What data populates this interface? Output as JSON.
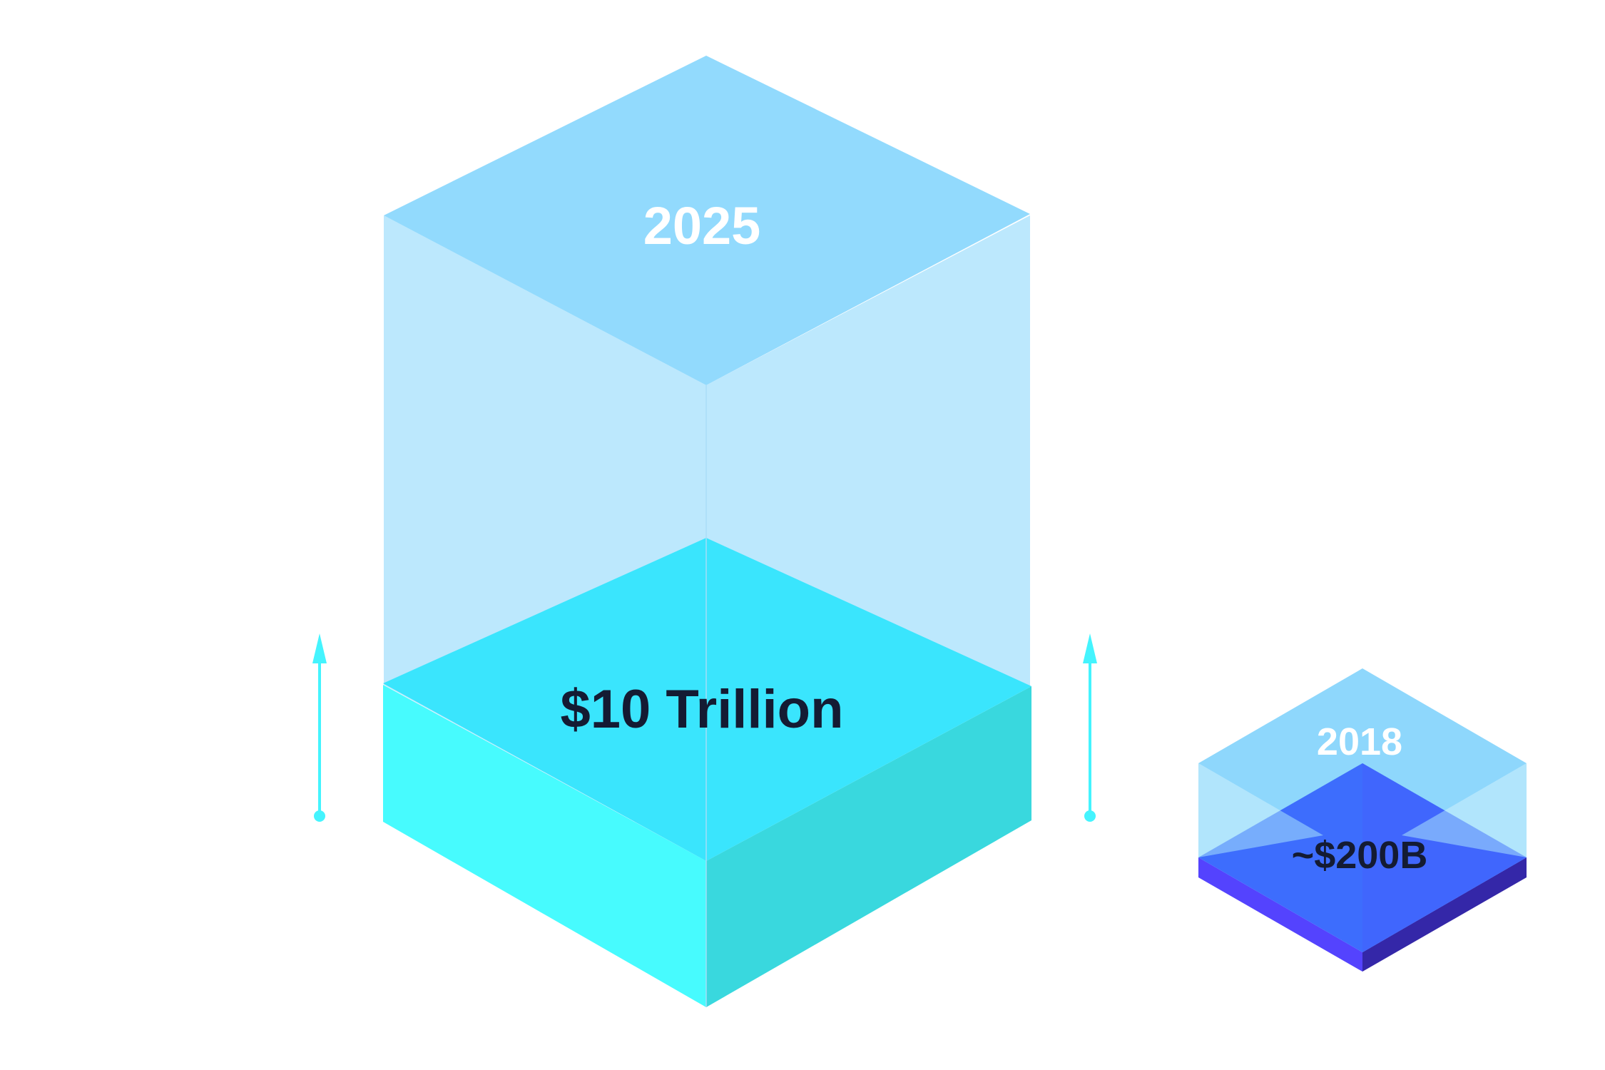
{
  "cubes": [
    {
      "id": "large",
      "year_label": "2025",
      "value_label": "$10 Trillion",
      "fill_fraction": 0.33
    },
    {
      "id": "small",
      "year_label": "2018",
      "value_label": "~$200B",
      "fill_fraction": 0.3
    }
  ],
  "colors": {
    "glass_top": "#92DAFD",
    "glass_side": "#BCE8FD",
    "glass_top_small": "#8ED7FC",
    "cyan_top": "#3AE5FD",
    "cyan_left": "#47FBFE",
    "cyan_right": "#39D8DE",
    "blue_top": "#3D6DFD",
    "blue_top_right": "#4262FD",
    "blue_left": "#5443FE",
    "blue_right": "#3427A8",
    "arrow": "#44F4FE",
    "year_text": "#FFFFFF",
    "value_text": "#141B33"
  },
  "indicators": [
    {
      "icon": "up-arrow-icon"
    },
    {
      "icon": "up-arrow-icon"
    }
  ]
}
